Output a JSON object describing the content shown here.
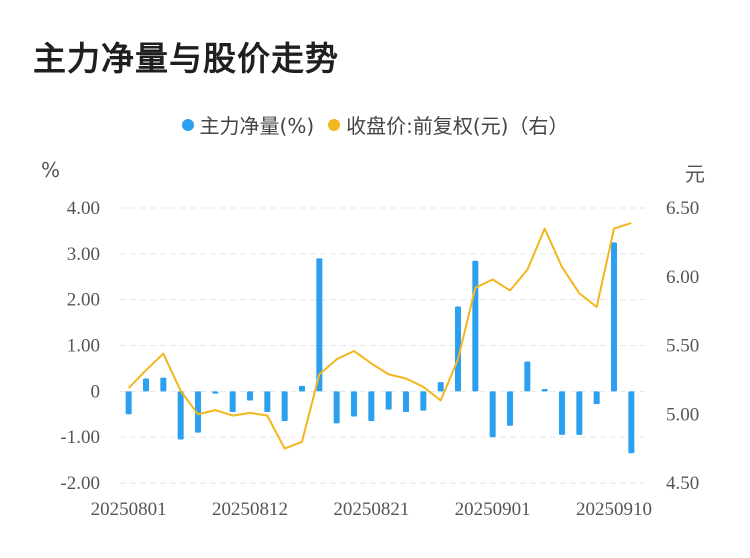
{
  "title": "主力净量与股价走势",
  "legend": [
    {
      "label": "主力净量(%)",
      "color": "#2b9ff0"
    },
    {
      "label": "收盘价:前复权(元)（右）",
      "color": "#f3b71e"
    }
  ],
  "colors": {
    "bar": "#2b9ff0",
    "line": "#f3b71e",
    "grid": "#e6e6e6"
  },
  "chart_data": {
    "type": "bar+line",
    "ylabel_left": "%",
    "ylabel_right": "元",
    "ylim_left": [
      -2.0,
      4.0
    ],
    "ylim_right": [
      4.5,
      6.5
    ],
    "yticks_left": [
      "4.00",
      "3.00",
      "2.00",
      "1.00",
      "0",
      "-1.00",
      "-2.00"
    ],
    "yticks_right": [
      "6.50",
      "6.00",
      "5.50",
      "5.00",
      "4.50"
    ],
    "xtick_labels": [
      "20250801",
      "20250812",
      "20250821",
      "20250901",
      "20250910"
    ],
    "xtick_indices": [
      0,
      7,
      14,
      21,
      28
    ],
    "grid": true,
    "legend_position": "top",
    "series": [
      {
        "name": "主力净量(%)",
        "type": "bar",
        "axis": "left",
        "values": [
          -0.5,
          0.28,
          0.3,
          -1.05,
          -0.9,
          -0.05,
          -0.45,
          -0.2,
          -0.45,
          -0.65,
          0.12,
          2.9,
          -0.7,
          -0.55,
          -0.65,
          -0.4,
          -0.45,
          -0.42,
          0.2,
          1.85,
          2.85,
          -1.0,
          -0.75,
          0.65,
          0.05,
          -0.95,
          -0.95,
          -0.28,
          3.25,
          -1.35
        ]
      },
      {
        "name": "收盘价:前复权(元)（右）",
        "type": "line",
        "axis": "right",
        "values": [
          5.19,
          5.32,
          5.44,
          5.17,
          5.0,
          5.03,
          4.99,
          5.01,
          4.99,
          4.75,
          4.8,
          5.29,
          5.4,
          5.46,
          5.37,
          5.29,
          5.26,
          5.2,
          5.1,
          5.4,
          5.92,
          5.98,
          5.9,
          6.05,
          6.35,
          6.07,
          5.88,
          5.78,
          6.35,
          6.39
        ]
      }
    ]
  }
}
